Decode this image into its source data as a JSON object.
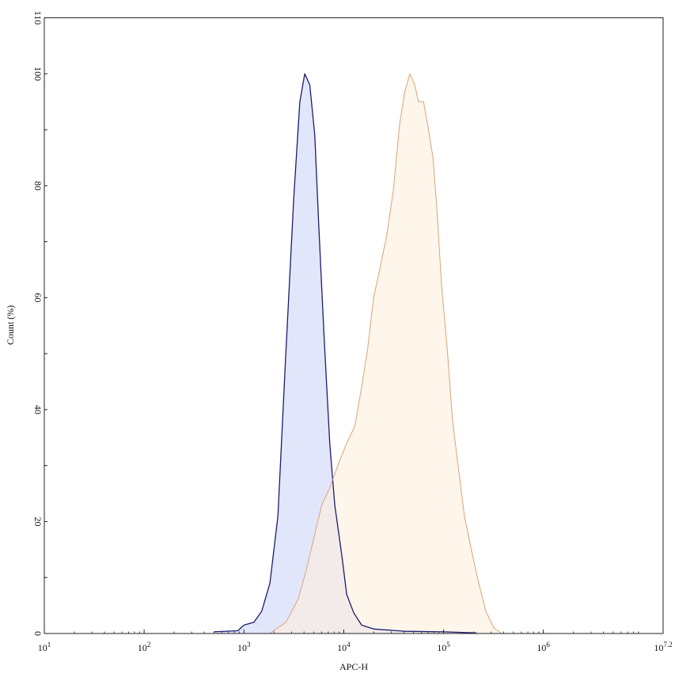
{
  "chart_data": {
    "type": "area",
    "title": "",
    "xlabel": "APC-H",
    "ylabel": "Count (%)",
    "xscale": "log",
    "xlim": [
      10,
      15848932
    ],
    "ylim": [
      0,
      110
    ],
    "x_ticks": [
      {
        "value": 10,
        "base": "10",
        "exp": "1"
      },
      {
        "value": 100,
        "base": "10",
        "exp": "2"
      },
      {
        "value": 1000,
        "base": "10",
        "exp": "3"
      },
      {
        "value": 10000,
        "base": "10",
        "exp": "4"
      },
      {
        "value": 100000,
        "base": "10",
        "exp": "5"
      },
      {
        "value": 1000000,
        "base": "10",
        "exp": "6"
      },
      {
        "value": 15848932,
        "base": "10",
        "exp": "7.2"
      }
    ],
    "y_ticks": [
      0,
      20,
      40,
      60,
      80,
      100,
      110
    ],
    "grid": false,
    "legend": "none",
    "series": [
      {
        "color": "#1c1c6e",
        "fill": "#dfe3fb",
        "x": [
          500,
          870,
          1000,
          1260,
          1510,
          1820,
          2190,
          2630,
          3160,
          3630,
          4070,
          4570,
          5130,
          5620,
          6310,
          7240,
          8130,
          9550,
          10700,
          12600,
          15100,
          19900,
          40700,
          102000,
          214000
        ],
        "y": [
          0.3,
          0.5,
          1.5,
          2,
          4,
          9,
          21,
          50,
          78,
          95,
          100,
          98,
          89,
          73,
          54,
          34,
          23,
          14,
          7,
          3.7,
          1.5,
          0.8,
          0.4,
          0.3,
          0.1
        ]
      },
      {
        "color": "#d9a577",
        "fill": "#fdeedd",
        "x": [
          1820,
          2630,
          3470,
          4170,
          5010,
          6030,
          7240,
          8710,
          10700,
          12900,
          15100,
          17400,
          19900,
          22900,
          26900,
          31300,
          36300,
          41100,
          45900,
          51400,
          56200,
          63000,
          69200,
          78400,
          85600,
          95700,
          108700,
          123000,
          140000,
          162000,
          195000,
          225000,
          265000,
          319000,
          383000
        ],
        "y": [
          0,
          2,
          6,
          11,
          17,
          23,
          26,
          30,
          34,
          37,
          44,
          51,
          60,
          65,
          71,
          79,
          91,
          97,
          100,
          98,
          95,
          95,
          91,
          85,
          76,
          62,
          51,
          38,
          30,
          21,
          14,
          9,
          4,
          1,
          0
        ]
      }
    ]
  }
}
